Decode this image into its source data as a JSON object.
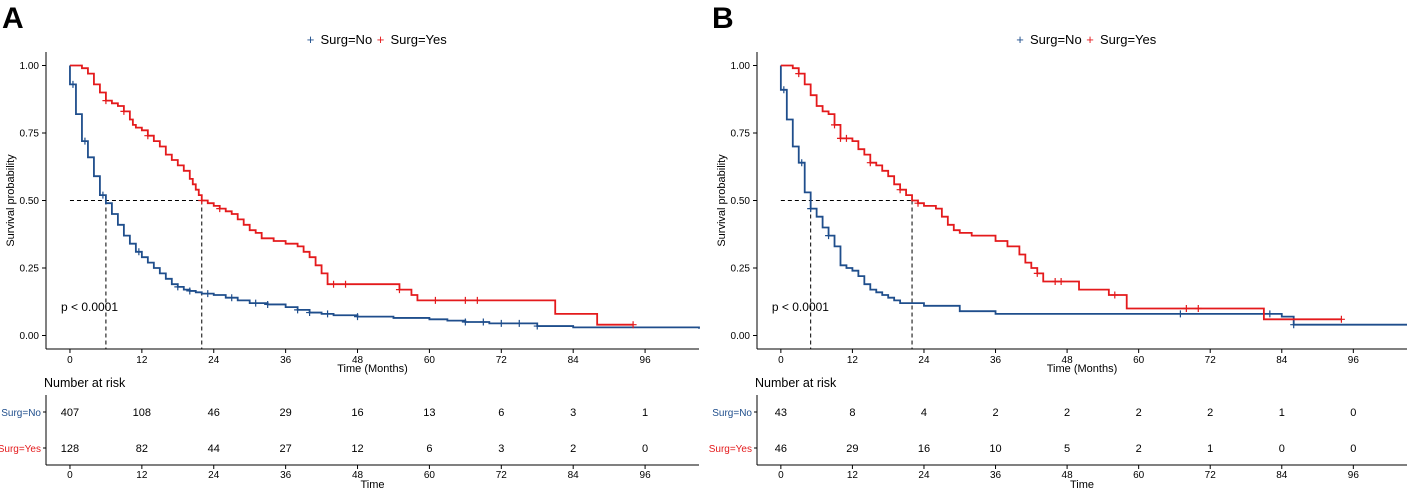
{
  "chart_data": [
    {
      "panel_label": "A",
      "type": "line",
      "subtype": "kaplan-meier",
      "legend": {
        "placement": "top-center",
        "entries": [
          "Surg=No",
          "Surg=Yes"
        ]
      },
      "xlabel": "Time (Months)",
      "ylabel": "Survival probability",
      "xlim": [
        -4,
        105
      ],
      "ylim": [
        -0.05,
        1.05
      ],
      "xticks": [
        "0",
        "12",
        "24",
        "36",
        "48",
        "60",
        "72",
        "84",
        "96"
      ],
      "yticks": [
        "0.00",
        "0.25",
        "0.50",
        "0.75",
        "1.00"
      ],
      "grid": false,
      "pvalue": "p < 0.0001",
      "median_line_y": 0.5,
      "median_times": [
        6,
        22
      ],
      "colors": {
        "no": "#1f4e8c",
        "yes": "#e41a1c"
      },
      "series": [
        {
          "name": "Surg=No",
          "points": [
            [
              0,
              0.93
            ],
            [
              1,
              0.82
            ],
            [
              2,
              0.72
            ],
            [
              3,
              0.66
            ],
            [
              4,
              0.59
            ],
            [
              5,
              0.52
            ],
            [
              6,
              0.49
            ],
            [
              7,
              0.45
            ],
            [
              8,
              0.41
            ],
            [
              9,
              0.37
            ],
            [
              10,
              0.34
            ],
            [
              11,
              0.31
            ],
            [
              12,
              0.29
            ],
            [
              13,
              0.27
            ],
            [
              14,
              0.25
            ],
            [
              15,
              0.23
            ],
            [
              16,
              0.21
            ],
            [
              17,
              0.19
            ],
            [
              18,
              0.18
            ],
            [
              19,
              0.17
            ],
            [
              20,
              0.165
            ],
            [
              21,
              0.16
            ],
            [
              22,
              0.155
            ],
            [
              24,
              0.15
            ],
            [
              26,
              0.14
            ],
            [
              28,
              0.13
            ],
            [
              30,
              0.12
            ],
            [
              33,
              0.115
            ],
            [
              36,
              0.105
            ],
            [
              38,
              0.095
            ],
            [
              40,
              0.085
            ],
            [
              42,
              0.08
            ],
            [
              44,
              0.075
            ],
            [
              48,
              0.07
            ],
            [
              54,
              0.065
            ],
            [
              60,
              0.06
            ],
            [
              63,
              0.055
            ],
            [
              66,
              0.05
            ],
            [
              70,
              0.045
            ],
            [
              78,
              0.035
            ],
            [
              84,
              0.03
            ],
            [
              105,
              0.025
            ]
          ],
          "censor_times": [
            0.5,
            2.5,
            5.5,
            11.5,
            18,
            20,
            23,
            27,
            31,
            33,
            38,
            40,
            43,
            48,
            66,
            69,
            72,
            75,
            78
          ]
        },
        {
          "name": "Surg=Yes",
          "points": [
            [
              0,
              1.0
            ],
            [
              2,
              0.99
            ],
            [
              3,
              0.97
            ],
            [
              4,
              0.93
            ],
            [
              5,
              0.9
            ],
            [
              6,
              0.87
            ],
            [
              7,
              0.86
            ],
            [
              8,
              0.85
            ],
            [
              9,
              0.83
            ],
            [
              10,
              0.8
            ],
            [
              10.5,
              0.78
            ],
            [
              11,
              0.77
            ],
            [
              12,
              0.76
            ],
            [
              13,
              0.74
            ],
            [
              14,
              0.72
            ],
            [
              15,
              0.7
            ],
            [
              16,
              0.67
            ],
            [
              17,
              0.65
            ],
            [
              18,
              0.63
            ],
            [
              19,
              0.61
            ],
            [
              20,
              0.58
            ],
            [
              20.5,
              0.56
            ],
            [
              21,
              0.54
            ],
            [
              21.5,
              0.52
            ],
            [
              22,
              0.5
            ],
            [
              23,
              0.49
            ],
            [
              24,
              0.48
            ],
            [
              25,
              0.47
            ],
            [
              26,
              0.46
            ],
            [
              27,
              0.45
            ],
            [
              28,
              0.43
            ],
            [
              29,
              0.41
            ],
            [
              30,
              0.39
            ],
            [
              31,
              0.38
            ],
            [
              32,
              0.36
            ],
            [
              34,
              0.35
            ],
            [
              36,
              0.34
            ],
            [
              38,
              0.33
            ],
            [
              39,
              0.31
            ],
            [
              40,
              0.29
            ],
            [
              41,
              0.26
            ],
            [
              42,
              0.23
            ],
            [
              43,
              0.19
            ],
            [
              48,
              0.19
            ],
            [
              55,
              0.17
            ],
            [
              57,
              0.15
            ],
            [
              58,
              0.13
            ],
            [
              65,
              0.13
            ],
            [
              71,
              0.13
            ],
            [
              80,
              0.13
            ],
            [
              81,
              0.08
            ],
            [
              87,
              0.08
            ],
            [
              88,
              0.04
            ],
            [
              94,
              0.04
            ]
          ],
          "censor_times": [
            6,
            9,
            13,
            22,
            25,
            44,
            46,
            55,
            61,
            66,
            68,
            94
          ]
        }
      ],
      "risk_table": {
        "title": "Number at risk",
        "xlabel": "Time",
        "rows": [
          {
            "label": "Surg=No",
            "values": [
              "407",
              "108",
              "46",
              "29",
              "16",
              "13",
              "6",
              "3",
              "1"
            ]
          },
          {
            "label": "Surg=Yes",
            "values": [
              "128",
              "82",
              "44",
              "27",
              "12",
              "6",
              "3",
              "2",
              "0"
            ]
          }
        ]
      }
    },
    {
      "panel_label": "B",
      "type": "line",
      "subtype": "kaplan-meier",
      "legend": {
        "placement": "top-center",
        "entries": [
          "Surg=No",
          "Surg=Yes"
        ]
      },
      "xlabel": "Time (Months)",
      "ylabel": "Survival probability",
      "xlim": [
        -4,
        105
      ],
      "ylim": [
        -0.05,
        1.05
      ],
      "xticks": [
        "0",
        "12",
        "24",
        "36",
        "48",
        "60",
        "72",
        "84",
        "96"
      ],
      "yticks": [
        "0.00",
        "0.25",
        "0.50",
        "0.75",
        "1.00"
      ],
      "grid": false,
      "pvalue": "p < 0.0001",
      "median_line_y": 0.5,
      "median_times": [
        5,
        22
      ],
      "colors": {
        "no": "#1f4e8c",
        "yes": "#e41a1c"
      },
      "series": [
        {
          "name": "Surg=No",
          "points": [
            [
              0,
              0.91
            ],
            [
              1,
              0.8
            ],
            [
              2,
              0.7
            ],
            [
              3,
              0.64
            ],
            [
              4,
              0.53
            ],
            [
              5,
              0.47
            ],
            [
              6,
              0.44
            ],
            [
              7,
              0.4
            ],
            [
              8,
              0.37
            ],
            [
              9,
              0.33
            ],
            [
              10,
              0.26
            ],
            [
              11,
              0.25
            ],
            [
              12,
              0.24
            ],
            [
              13,
              0.22
            ],
            [
              14,
              0.19
            ],
            [
              15,
              0.17
            ],
            [
              16,
              0.16
            ],
            [
              17,
              0.15
            ],
            [
              18,
              0.14
            ],
            [
              19,
              0.13
            ],
            [
              20,
              0.12
            ],
            [
              24,
              0.11
            ],
            [
              30,
              0.09
            ],
            [
              36,
              0.08
            ],
            [
              60,
              0.08
            ],
            [
              84,
              0.07
            ],
            [
              86,
              0.04
            ],
            [
              105,
              0.04
            ]
          ],
          "censor_times": [
            0.5,
            3.5,
            5,
            8,
            67,
            82,
            86
          ]
        },
        {
          "name": "Surg=Yes",
          "points": [
            [
              0,
              1.0
            ],
            [
              2,
              0.99
            ],
            [
              3,
              0.97
            ],
            [
              4,
              0.93
            ],
            [
              5,
              0.89
            ],
            [
              6,
              0.85
            ],
            [
              7,
              0.83
            ],
            [
              8,
              0.82
            ],
            [
              9,
              0.78
            ],
            [
              10,
              0.73
            ],
            [
              12,
              0.72
            ],
            [
              13,
              0.69
            ],
            [
              14,
              0.67
            ],
            [
              15,
              0.64
            ],
            [
              16,
              0.63
            ],
            [
              17,
              0.61
            ],
            [
              18,
              0.59
            ],
            [
              19,
              0.56
            ],
            [
              20,
              0.54
            ],
            [
              21,
              0.52
            ],
            [
              22,
              0.5
            ],
            [
              23,
              0.49
            ],
            [
              24,
              0.48
            ],
            [
              26,
              0.47
            ],
            [
              27,
              0.44
            ],
            [
              28,
              0.41
            ],
            [
              29,
              0.39
            ],
            [
              30,
              0.38
            ],
            [
              32,
              0.37
            ],
            [
              36,
              0.35
            ],
            [
              38,
              0.33
            ],
            [
              40,
              0.3
            ],
            [
              41,
              0.27
            ],
            [
              42,
              0.25
            ],
            [
              43,
              0.23
            ],
            [
              44,
              0.2
            ],
            [
              50,
              0.17
            ],
            [
              55,
              0.15
            ],
            [
              58,
              0.1
            ],
            [
              65,
              0.1
            ],
            [
              81,
              0.06
            ],
            [
              94,
              0.06
            ]
          ],
          "censor_times": [
            3,
            9,
            10,
            11,
            15,
            20,
            23,
            43,
            46,
            47,
            56,
            68,
            70,
            94
          ]
        }
      ],
      "risk_table": {
        "title": "Number at risk",
        "xlabel": "Time",
        "rows": [
          {
            "label": "Surg=No",
            "values": [
              "43",
              "8",
              "4",
              "2",
              "2",
              "2",
              "2",
              "1",
              "0"
            ]
          },
          {
            "label": "Surg=Yes",
            "values": [
              "46",
              "29",
              "16",
              "10",
              "5",
              "2",
              "1",
              "0",
              "0"
            ]
          }
        ]
      }
    }
  ]
}
